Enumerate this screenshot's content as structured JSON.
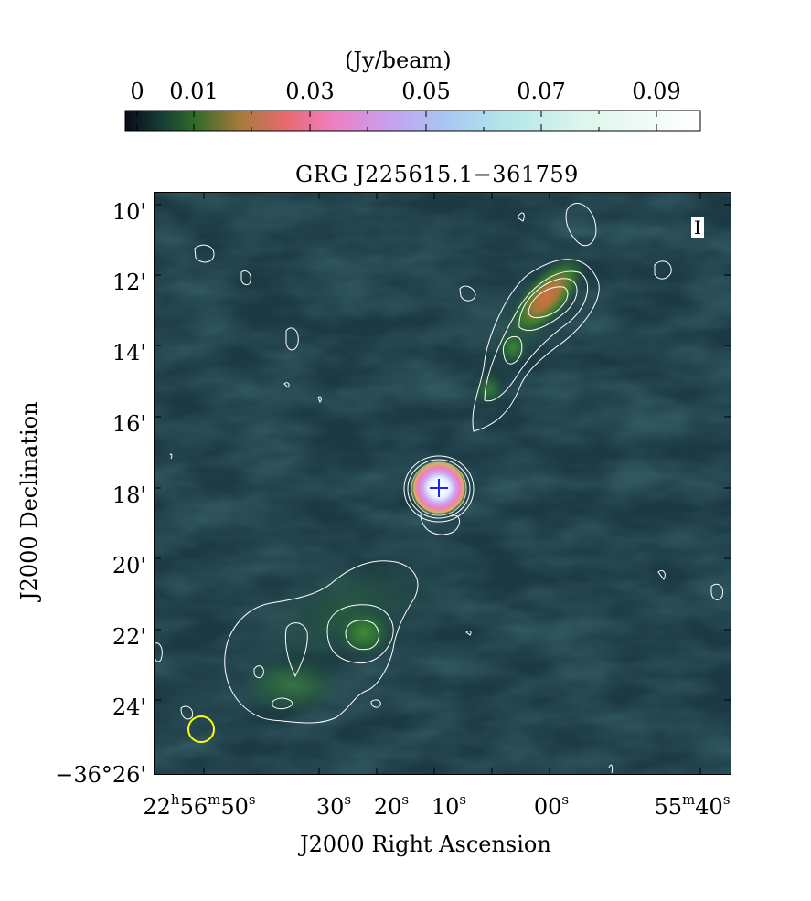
{
  "colorbar": {
    "unit_label": "(Jy/beam)",
    "ticks": [
      "0",
      "0.01",
      "0.03",
      "0.05",
      "0.07",
      "0.09"
    ],
    "colormap": [
      "#0a0b1a",
      "#1b4a3a",
      "#3b7a28",
      "#b07a3a",
      "#e8607a",
      "#f080c8",
      "#c8a0f0",
      "#a8c8f0",
      "#b8e8e8",
      "#e8f8f0",
      "#ffffff"
    ]
  },
  "image": {
    "title": "GRG J225615.1−361759",
    "stokes_label": "I",
    "background_color": "#1c3a44",
    "contour_color": "#ffffff",
    "marker_color": "#2020ff",
    "beam_color": "#ffff00"
  },
  "axes": {
    "ylabel": "J2000 Declination",
    "xlabel": "J2000 Right Ascension",
    "yticks": [
      "10'",
      "12'",
      "14'",
      "16'",
      "18'",
      "20'",
      "22'",
      "24'",
      "−36°26'"
    ],
    "xticks": [
      {
        "main": "22",
        "h": "h",
        "min": "56",
        "m": "m",
        "sec": "50",
        "s": "s"
      },
      {
        "main": "30",
        "s": "s"
      },
      {
        "main": "20",
        "s": "s"
      },
      {
        "main": "10",
        "s": "s"
      },
      {
        "main": "00",
        "s": "s"
      },
      {
        "main": "55",
        "m": "m",
        "sec": "40",
        "s": "s"
      }
    ]
  }
}
